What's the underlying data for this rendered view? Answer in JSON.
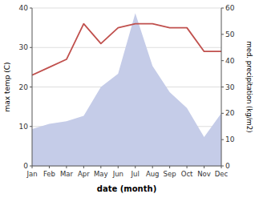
{
  "chart_data": {
    "type": "line",
    "categories": [
      "Jan",
      "Feb",
      "Mar",
      "Apr",
      "May",
      "Jun",
      "Jul",
      "Aug",
      "Sep",
      "Oct",
      "Nov",
      "Dec"
    ],
    "series": [
      {
        "type": "area",
        "axis": "y2",
        "color": "#c5cce8",
        "values": [
          14,
          16,
          17,
          19,
          30,
          35,
          58,
          38,
          28,
          22,
          11,
          20
        ]
      },
      {
        "type": "line",
        "color": "#c0504d",
        "values": [
          23,
          25,
          27,
          36,
          31,
          35,
          36,
          36,
          35,
          35,
          29,
          29
        ]
      }
    ],
    "xlabel": "date (month)",
    "ylabel": "max temp (C)",
    "y2label": "med. precipitation (kg/m2)",
    "ylim": [
      0,
      40
    ],
    "yticks": [
      0,
      10,
      20,
      30,
      40
    ],
    "y2lim": [
      0,
      60
    ],
    "y2ticks": [
      0,
      10,
      20,
      30,
      40,
      50,
      60
    ],
    "grid": true
  }
}
